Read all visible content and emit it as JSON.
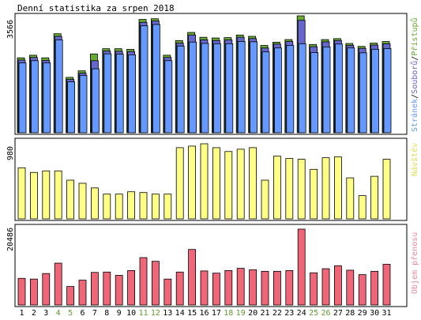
{
  "title": "Denní statistika za srpen 2018",
  "colors": {
    "frame": "#000000",
    "pages": "#6699ff",
    "files": "#6666cc",
    "hits": "#66aa33",
    "visits": "#ffff88",
    "traffic": "#ee6677",
    "weekend_label": "#669933",
    "label": "#000000"
  },
  "chart_data": [
    {
      "type": "bar",
      "panel": "top",
      "ylabel": "3566",
      "ymax": 3566,
      "legend_parts": [
        "Stránek",
        "Souborů",
        "Přístupů"
      ],
      "legend_separator": "/",
      "categories": [
        "1",
        "2",
        "3",
        "4",
        "5",
        "6",
        "7",
        "8",
        "9",
        "10",
        "11",
        "12",
        "13",
        "14",
        "15",
        "16",
        "17",
        "18",
        "19",
        "20",
        "21",
        "22",
        "23",
        "24",
        "25",
        "26",
        "27",
        "28",
        "29",
        "30",
        "31"
      ],
      "series": [
        {
          "name": "Přístupů",
          "values": [
            2300,
            2380,
            2300,
            3040,
            1700,
            1900,
            2420,
            2580,
            2580,
            2560,
            3480,
            3500,
            2380,
            2830,
            3080,
            2930,
            2910,
            2920,
            3000,
            2960,
            2680,
            2780,
            2860,
            3590,
            2710,
            2860,
            2890,
            2740,
            2650,
            2750,
            2800
          ]
        },
        {
          "name": "Souborů",
          "values": [
            2280,
            2360,
            2270,
            3010,
            1690,
            1880,
            2260,
            2560,
            2550,
            2540,
            3440,
            3480,
            2360,
            2800,
            3050,
            2900,
            2880,
            2900,
            2980,
            2940,
            2650,
            2770,
            2850,
            3500,
            2690,
            2840,
            2880,
            2730,
            2640,
            2740,
            2780
          ]
        },
        {
          "name": "Stránek",
          "values": [
            2240,
            2310,
            2240,
            2950,
            1660,
            1860,
            2060,
            2520,
            2510,
            2490,
            3380,
            3420,
            2310,
            2760,
            2880,
            2840,
            2830,
            2830,
            2900,
            2890,
            2580,
            2700,
            2780,
            2830,
            2560,
            2730,
            2820,
            2700,
            2550,
            2660,
            2680
          ]
        }
      ]
    },
    {
      "type": "bar",
      "panel": "middle",
      "ylabel": "980",
      "ymax": 980,
      "legend": "Návštěv",
      "categories": [
        "1",
        "2",
        "3",
        "4",
        "5",
        "6",
        "7",
        "8",
        "9",
        "10",
        "11",
        "12",
        "13",
        "14",
        "15",
        "16",
        "17",
        "18",
        "19",
        "20",
        "21",
        "22",
        "23",
        "24",
        "25",
        "26",
        "27",
        "28",
        "29",
        "30",
        "31"
      ],
      "series": [
        {
          "name": "Návštěv",
          "values": [
            660,
            600,
            620,
            620,
            500,
            460,
            400,
            320,
            320,
            350,
            340,
            320,
            320,
            920,
            940,
            970,
            920,
            870,
            900,
            920,
            500,
            810,
            780,
            770,
            640,
            790,
            800,
            530,
            300,
            550,
            770
          ]
        }
      ]
    },
    {
      "type": "bar",
      "panel": "bottom",
      "ylabel": "20486",
      "ymax": 20486,
      "legend": "Objem přenosu",
      "categories": [
        "1",
        "2",
        "3",
        "4",
        "5",
        "6",
        "7",
        "8",
        "9",
        "10",
        "11",
        "12",
        "13",
        "14",
        "15",
        "16",
        "17",
        "18",
        "19",
        "20",
        "21",
        "22",
        "23",
        "24",
        "25",
        "26",
        "27",
        "28",
        "29",
        "30",
        "31"
      ],
      "weekend_days": [
        "4",
        "5",
        "11",
        "12",
        "18",
        "19",
        "25",
        "26"
      ],
      "series": [
        {
          "name": "Objem přenosu",
          "values": [
            7200,
            7000,
            8500,
            11300,
            5000,
            6700,
            8800,
            8900,
            8000,
            9300,
            12800,
            11800,
            7000,
            8900,
            15000,
            9200,
            8600,
            9300,
            9900,
            9500,
            9100,
            9100,
            9300,
            20486,
            8700,
            9800,
            10600,
            9400,
            8200,
            9100,
            11000
          ]
        }
      ]
    }
  ]
}
